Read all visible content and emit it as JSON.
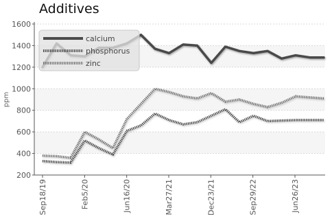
{
  "chart_data": {
    "type": "line",
    "title": "Additives",
    "ylabel": "ppm",
    "ylim": [
      200,
      1600
    ],
    "yticks": [
      200,
      400,
      600,
      800,
      1000,
      1200,
      1400,
      1600
    ],
    "xtick_labels": [
      "Sep18/19",
      "Feb5/20",
      "Jun16/20",
      "Mar27/21",
      "Dec23/21",
      "Sep29/22",
      "Jun26/23"
    ],
    "x": [
      0,
      1,
      2,
      3,
      4,
      5,
      6,
      7,
      8,
      9,
      10,
      11,
      12,
      13,
      14,
      15,
      16,
      17,
      18,
      19,
      20
    ],
    "grid": true,
    "legend_position": "top-left",
    "series": [
      {
        "name": "calcium",
        "color": "#4a4a4a",
        "style": "solid",
        "values": [
          1200,
          1420,
          1310,
          1300,
          1380,
          1380,
          1420,
          1500,
          1370,
          1330,
          1410,
          1400,
          1240,
          1390,
          1350,
          1330,
          1350,
          1280,
          1310,
          1290,
          1290
        ]
      },
      {
        "name": "phosphorus",
        "color": "#3c3c3c",
        "style": "dotted",
        "values": [
          330,
          320,
          315,
          520,
          450,
          390,
          610,
          660,
          770,
          710,
          670,
          690,
          750,
          810,
          690,
          750,
          700,
          705,
          710,
          710,
          710
        ]
      },
      {
        "name": "zinc",
        "color": "#6a6a6a",
        "style": "dotted",
        "values": [
          380,
          375,
          360,
          600,
          530,
          450,
          720,
          860,
          1000,
          970,
          930,
          910,
          960,
          880,
          900,
          860,
          830,
          870,
          930,
          920,
          910
        ]
      }
    ]
  }
}
